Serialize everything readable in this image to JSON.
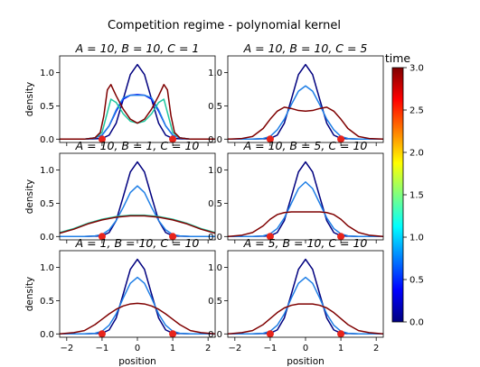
{
  "figure": {
    "title": "Competition regime - polynomial kernel",
    "colorbar_label": "time"
  },
  "chart_data": {
    "type": "line",
    "x_range": [
      -2.2,
      2.2
    ],
    "y_range": [
      -0.05,
      1.25
    ],
    "x_ticks": [
      -2,
      -1,
      0,
      1,
      2
    ],
    "y_ticks": [
      0.0,
      0.5,
      1.0
    ],
    "x_tick_labels": [
      "−2",
      "−1",
      "0",
      "1",
      "2"
    ],
    "y_tick_labels": [
      "0.0",
      "0.5",
      "1.0"
    ],
    "xlabel": "position",
    "ylabel": "density",
    "grid": false,
    "colorbar": {
      "label": "time",
      "range": [
        0.0,
        3.0
      ],
      "ticks": [
        0.0,
        0.5,
        1.0,
        1.5,
        2.0,
        2.5,
        3.0
      ],
      "tick_labels": [
        "0.0",
        "0.5",
        "1.0",
        "1.5",
        "2.0",
        "2.5",
        "3.0"
      ],
      "colormap": "jet",
      "colors": [
        "#00007f",
        "#0000ff",
        "#007fff",
        "#00ffff",
        "#7fff7f",
        "#ffff00",
        "#ff7f00",
        "#ff0000",
        "#7f0000"
      ]
    },
    "markers": {
      "x": [
        -1,
        1
      ],
      "y": 0.0,
      "color": "#e8241b"
    },
    "panels": [
      {
        "title": "A = 10, B = 10, C = 1",
        "show_ylabel": true,
        "show_xlabel": false,
        "show_xticklabels": false,
        "series": [
          {
            "time": 0.0,
            "color": "#00007f",
            "x": [
              -2.2,
              -1.5,
              -1.0,
              -0.8,
              -0.6,
              -0.4,
              -0.2,
              0.0,
              0.2,
              0.4,
              0.6,
              0.8,
              1.0,
              1.5,
              2.2
            ],
            "y": [
              0.0,
              0.0,
              0.01,
              0.06,
              0.24,
              0.6,
              0.97,
              1.12,
              0.97,
              0.6,
              0.24,
              0.06,
              0.01,
              0.0,
              0.0
            ]
          },
          {
            "time": 0.5,
            "color": "#0000f0",
            "x": [
              -2.2,
              -1.5,
              -1.2,
              -1.0,
              -0.8,
              -0.6,
              -0.4,
              -0.2,
              0.0,
              0.2,
              0.4,
              0.6,
              0.8,
              1.0,
              1.2,
              1.5,
              2.2
            ],
            "y": [
              0.0,
              0.0,
              0.02,
              0.06,
              0.2,
              0.42,
              0.6,
              0.66,
              0.67,
              0.66,
              0.6,
              0.42,
              0.2,
              0.06,
              0.02,
              0.0,
              0.0
            ]
          },
          {
            "time": 1.0,
            "color": "#1f7fe6",
            "x": [
              -2.2,
              -1.5,
              -1.2,
              -1.0,
              -0.8,
              -0.6,
              -0.4,
              -0.2,
              0.0,
              0.2,
              0.4,
              0.6,
              0.8,
              1.0,
              1.2,
              1.5,
              2.2
            ],
            "y": [
              0.0,
              0.0,
              0.02,
              0.06,
              0.2,
              0.44,
              0.62,
              0.66,
              0.66,
              0.66,
              0.62,
              0.44,
              0.2,
              0.06,
              0.02,
              0.0,
              0.0
            ]
          },
          {
            "time": 1.5,
            "color": "#20c8a0",
            "x": [
              -2.2,
              -1.5,
              -1.2,
              -1.0,
              -0.85,
              -0.75,
              -0.6,
              -0.4,
              -0.2,
              0.0,
              0.2,
              0.4,
              0.6,
              0.75,
              0.85,
              1.0,
              1.2,
              1.5,
              2.2
            ],
            "y": [
              0.0,
              0.0,
              0.02,
              0.1,
              0.4,
              0.6,
              0.55,
              0.38,
              0.27,
              0.24,
              0.27,
              0.38,
              0.55,
              0.6,
              0.4,
              0.1,
              0.02,
              0.0,
              0.0
            ]
          },
          {
            "time": 3.0,
            "color": "#7f0000",
            "x": [
              -2.2,
              -1.5,
              -1.2,
              -1.05,
              -0.95,
              -0.85,
              -0.75,
              -0.6,
              -0.4,
              -0.2,
              0.0,
              0.2,
              0.4,
              0.6,
              0.75,
              0.85,
              0.95,
              1.05,
              1.2,
              1.5,
              2.2
            ],
            "y": [
              0.0,
              0.0,
              0.02,
              0.1,
              0.35,
              0.74,
              0.82,
              0.65,
              0.45,
              0.3,
              0.24,
              0.3,
              0.45,
              0.65,
              0.82,
              0.74,
              0.35,
              0.1,
              0.02,
              0.0,
              0.0
            ]
          }
        ]
      },
      {
        "title": "A = 10, B = 10, C = 5",
        "show_ylabel": false,
        "show_xlabel": false,
        "show_xticklabels": false,
        "series": [
          {
            "time": 0.0,
            "color": "#00007f",
            "x": [
              -2.2,
              -1.5,
              -1.0,
              -0.8,
              -0.6,
              -0.4,
              -0.2,
              0.0,
              0.2,
              0.4,
              0.6,
              0.8,
              1.0,
              1.5,
              2.2
            ],
            "y": [
              0.0,
              0.0,
              0.01,
              0.06,
              0.24,
              0.6,
              0.97,
              1.12,
              0.97,
              0.6,
              0.24,
              0.06,
              0.01,
              0.0,
              0.0
            ]
          },
          {
            "time": 1.0,
            "color": "#1f7fe6",
            "x": [
              -2.2,
              -1.5,
              -1.2,
              -1.0,
              -0.8,
              -0.6,
              -0.4,
              -0.2,
              0.0,
              0.2,
              0.4,
              0.6,
              0.8,
              1.0,
              1.2,
              1.5,
              2.2
            ],
            "y": [
              0.0,
              0.0,
              0.01,
              0.04,
              0.14,
              0.3,
              0.52,
              0.72,
              0.8,
              0.72,
              0.52,
              0.3,
              0.14,
              0.04,
              0.01,
              0.0,
              0.0
            ]
          },
          {
            "time": 3.0,
            "color": "#7f0000",
            "x": [
              -2.2,
              -1.8,
              -1.5,
              -1.2,
              -1.0,
              -0.8,
              -0.6,
              -0.4,
              -0.2,
              0.0,
              0.2,
              0.4,
              0.6,
              0.8,
              1.0,
              1.2,
              1.5,
              1.8,
              2.2
            ],
            "y": [
              0.0,
              0.01,
              0.04,
              0.16,
              0.3,
              0.42,
              0.48,
              0.46,
              0.43,
              0.42,
              0.43,
              0.46,
              0.48,
              0.42,
              0.3,
              0.16,
              0.04,
              0.01,
              0.0
            ]
          }
        ]
      },
      {
        "title": "A = 10, B = 1, C = 10",
        "show_ylabel": true,
        "show_xlabel": false,
        "show_xticklabels": false,
        "series": [
          {
            "time": 0.0,
            "color": "#00007f",
            "x": [
              -2.2,
              -1.5,
              -1.0,
              -0.8,
              -0.6,
              -0.4,
              -0.2,
              0.0,
              0.2,
              0.4,
              0.6,
              0.8,
              1.0,
              1.5,
              2.2
            ],
            "y": [
              0.0,
              0.0,
              0.01,
              0.06,
              0.24,
              0.6,
              0.97,
              1.12,
              0.97,
              0.6,
              0.24,
              0.06,
              0.01,
              0.0,
              0.0
            ]
          },
          {
            "time": 1.0,
            "color": "#1f7fe6",
            "x": [
              -2.2,
              -1.5,
              -1.2,
              -1.0,
              -0.8,
              -0.6,
              -0.4,
              -0.2,
              0.0,
              0.2,
              0.4,
              0.6,
              0.8,
              1.0,
              1.2,
              1.5,
              2.2
            ],
            "y": [
              0.0,
              0.0,
              0.01,
              0.03,
              0.1,
              0.24,
              0.44,
              0.66,
              0.76,
              0.66,
              0.44,
              0.24,
              0.1,
              0.03,
              0.01,
              0.0,
              0.0
            ]
          },
          {
            "time": 1.5,
            "color": "#20c8a0",
            "x": [
              -2.2,
              -1.8,
              -1.4,
              -1.0,
              -0.6,
              -0.2,
              0.0,
              0.2,
              0.6,
              1.0,
              1.4,
              1.8,
              2.2
            ],
            "y": [
              0.06,
              0.12,
              0.2,
              0.26,
              0.3,
              0.32,
              0.32,
              0.32,
              0.3,
              0.26,
              0.2,
              0.12,
              0.06
            ]
          },
          {
            "time": 3.0,
            "color": "#7f0000",
            "x": [
              -2.2,
              -1.8,
              -1.4,
              -1.0,
              -0.6,
              -0.2,
              0.0,
              0.2,
              0.6,
              1.0,
              1.4,
              1.8,
              2.2
            ],
            "y": [
              0.05,
              0.11,
              0.19,
              0.25,
              0.29,
              0.31,
              0.31,
              0.31,
              0.29,
              0.25,
              0.19,
              0.11,
              0.05
            ]
          }
        ]
      },
      {
        "title": "A = 10, B = 5, C = 10",
        "show_ylabel": false,
        "show_xlabel": false,
        "show_xticklabels": false,
        "series": [
          {
            "time": 0.0,
            "color": "#00007f",
            "x": [
              -2.2,
              -1.5,
              -1.0,
              -0.8,
              -0.6,
              -0.4,
              -0.2,
              0.0,
              0.2,
              0.4,
              0.6,
              0.8,
              1.0,
              1.5,
              2.2
            ],
            "y": [
              0.0,
              0.0,
              0.01,
              0.06,
              0.24,
              0.6,
              0.97,
              1.12,
              0.97,
              0.6,
              0.24,
              0.06,
              0.01,
              0.0,
              0.0
            ]
          },
          {
            "time": 1.0,
            "color": "#1f7fe6",
            "x": [
              -2.2,
              -1.5,
              -1.2,
              -1.0,
              -0.8,
              -0.6,
              -0.4,
              -0.2,
              0.0,
              0.2,
              0.4,
              0.6,
              0.8,
              1.0,
              1.2,
              1.5,
              2.2
            ],
            "y": [
              0.0,
              0.0,
              0.01,
              0.04,
              0.12,
              0.28,
              0.5,
              0.72,
              0.82,
              0.72,
              0.5,
              0.28,
              0.12,
              0.04,
              0.01,
              0.0,
              0.0
            ]
          },
          {
            "time": 3.0,
            "color": "#7f0000",
            "x": [
              -2.2,
              -1.8,
              -1.5,
              -1.2,
              -1.0,
              -0.8,
              -0.6,
              -0.4,
              -0.2,
              0.0,
              0.2,
              0.4,
              0.6,
              0.8,
              1.0,
              1.2,
              1.5,
              1.8,
              2.2
            ],
            "y": [
              0.0,
              0.02,
              0.06,
              0.16,
              0.26,
              0.33,
              0.36,
              0.37,
              0.37,
              0.37,
              0.37,
              0.37,
              0.36,
              0.33,
              0.26,
              0.16,
              0.06,
              0.02,
              0.0
            ]
          }
        ]
      },
      {
        "title": "A = 1, B = 10, C = 10",
        "show_ylabel": true,
        "show_xlabel": true,
        "show_xticklabels": true,
        "series": [
          {
            "time": 0.0,
            "color": "#00007f",
            "x": [
              -2.2,
              -1.5,
              -1.0,
              -0.8,
              -0.6,
              -0.4,
              -0.2,
              0.0,
              0.2,
              0.4,
              0.6,
              0.8,
              1.0,
              1.5,
              2.2
            ],
            "y": [
              0.0,
              0.0,
              0.01,
              0.06,
              0.24,
              0.6,
              0.97,
              1.12,
              0.97,
              0.6,
              0.24,
              0.06,
              0.01,
              0.0,
              0.0
            ]
          },
          {
            "time": 1.0,
            "color": "#1f7fe6",
            "x": [
              -2.2,
              -1.5,
              -1.2,
              -1.0,
              -0.8,
              -0.6,
              -0.4,
              -0.2,
              0.0,
              0.2,
              0.4,
              0.6,
              0.8,
              1.0,
              1.2,
              1.5,
              2.2
            ],
            "y": [
              0.0,
              0.0,
              0.01,
              0.04,
              0.13,
              0.3,
              0.54,
              0.76,
              0.85,
              0.76,
              0.54,
              0.3,
              0.13,
              0.04,
              0.01,
              0.0,
              0.0
            ]
          },
          {
            "time": 3.0,
            "color": "#7f0000",
            "x": [
              -2.2,
              -1.8,
              -1.5,
              -1.2,
              -1.0,
              -0.8,
              -0.6,
              -0.4,
              -0.2,
              0.0,
              0.2,
              0.4,
              0.6,
              0.8,
              1.0,
              1.2,
              1.5,
              1.8,
              2.2
            ],
            "y": [
              0.0,
              0.02,
              0.05,
              0.14,
              0.22,
              0.3,
              0.37,
              0.42,
              0.45,
              0.46,
              0.45,
              0.42,
              0.37,
              0.3,
              0.22,
              0.14,
              0.05,
              0.02,
              0.0
            ]
          }
        ]
      },
      {
        "title": "A = 5, B = 10, C = 10",
        "show_ylabel": false,
        "show_xlabel": true,
        "show_xticklabels": true,
        "series": [
          {
            "time": 0.0,
            "color": "#00007f",
            "x": [
              -2.2,
              -1.5,
              -1.0,
              -0.8,
              -0.6,
              -0.4,
              -0.2,
              0.0,
              0.2,
              0.4,
              0.6,
              0.8,
              1.0,
              1.5,
              2.2
            ],
            "y": [
              0.0,
              0.0,
              0.01,
              0.06,
              0.24,
              0.6,
              0.97,
              1.12,
              0.97,
              0.6,
              0.24,
              0.06,
              0.01,
              0.0,
              0.0
            ]
          },
          {
            "time": 1.0,
            "color": "#1f7fe6",
            "x": [
              -2.2,
              -1.5,
              -1.2,
              -1.0,
              -0.8,
              -0.6,
              -0.4,
              -0.2,
              0.0,
              0.2,
              0.4,
              0.6,
              0.8,
              1.0,
              1.2,
              1.5,
              2.2
            ],
            "y": [
              0.0,
              0.0,
              0.01,
              0.04,
              0.13,
              0.3,
              0.54,
              0.76,
              0.85,
              0.76,
              0.54,
              0.3,
              0.13,
              0.04,
              0.01,
              0.0,
              0.0
            ]
          },
          {
            "time": 3.0,
            "color": "#7f0000",
            "x": [
              -2.2,
              -1.8,
              -1.5,
              -1.2,
              -1.0,
              -0.8,
              -0.6,
              -0.4,
              -0.2,
              0.0,
              0.2,
              0.4,
              0.6,
              0.8,
              1.0,
              1.2,
              1.5,
              1.8,
              2.2
            ],
            "y": [
              0.0,
              0.02,
              0.05,
              0.14,
              0.23,
              0.32,
              0.39,
              0.43,
              0.45,
              0.45,
              0.45,
              0.43,
              0.39,
              0.32,
              0.23,
              0.14,
              0.05,
              0.02,
              0.0
            ]
          }
        ]
      }
    ]
  }
}
